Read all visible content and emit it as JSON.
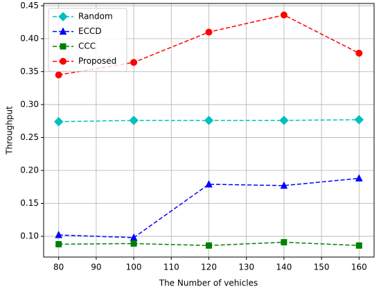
{
  "chart_data": {
    "type": "line",
    "xlabel": "The Number of vehicles",
    "ylabel": "Throughput",
    "x": [
      80,
      100,
      120,
      140,
      160
    ],
    "series": [
      {
        "name": "Random",
        "color": "#00bfbf",
        "marker": "diamond",
        "values": [
          0.274,
          0.276,
          0.276,
          0.276,
          0.277
        ]
      },
      {
        "name": "ECCD",
        "color": "#0000ff",
        "marker": "triangle",
        "values": [
          0.102,
          0.098,
          0.179,
          0.177,
          0.188
        ]
      },
      {
        "name": "CCC",
        "color": "#008000",
        "marker": "square",
        "values": [
          0.088,
          0.089,
          0.086,
          0.091,
          0.086
        ]
      },
      {
        "name": "Proposed",
        "color": "#ff0000",
        "marker": "circle",
        "values": [
          0.345,
          0.364,
          0.41,
          0.436,
          0.378
        ]
      }
    ],
    "xlim": [
      76,
      164
    ],
    "ylim": [
      0.0685,
      0.4535
    ],
    "xticks": [
      80,
      90,
      100,
      110,
      120,
      130,
      140,
      150,
      160
    ],
    "yticks": [
      {
        "value": 0.1,
        "label": "0.10"
      },
      {
        "value": 0.15,
        "label": "0.15"
      },
      {
        "value": 0.2,
        "label": "0.20"
      },
      {
        "value": 0.25,
        "label": "0.25"
      },
      {
        "value": 0.3,
        "label": "0.30"
      },
      {
        "value": 0.35,
        "label": "0.35"
      },
      {
        "value": 0.4,
        "label": "0.40"
      },
      {
        "value": 0.45,
        "label": "0.45"
      }
    ],
    "grid": true,
    "legend": "upper left",
    "linestyle": "dashed"
  }
}
